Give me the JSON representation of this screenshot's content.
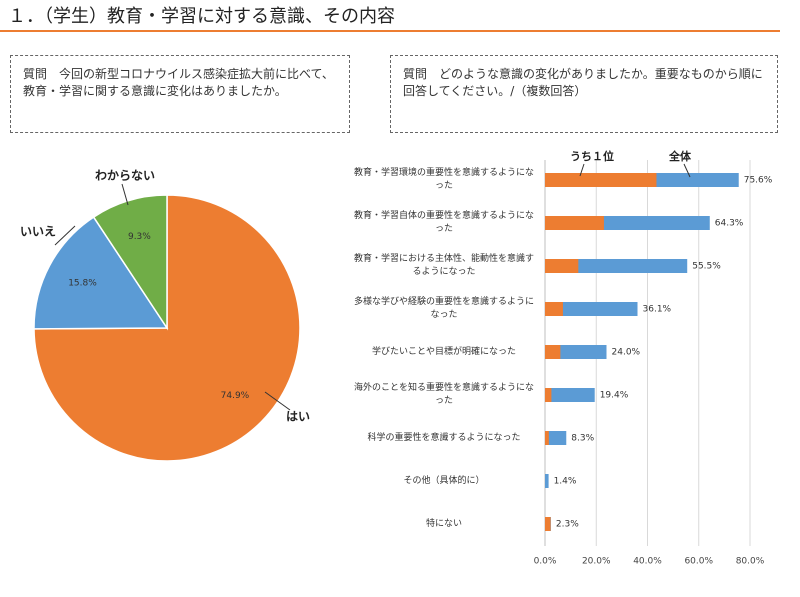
{
  "header": {
    "title": "１．（学生）教育・学習に対する意識、その内容"
  },
  "questions": [
    "質問　今回の新型コロナウイルス感染症拡大前に比べて、教育・学習に関する意識に変化はありましたか。",
    "質問　どのような意識の変化がありましたか。重要なものから順に回答してください。/（複数回答）"
  ],
  "chart_data": [
    {
      "type": "pie",
      "categories": [
        "はい",
        "いいえ",
        "わからない"
      ],
      "values": [
        74.9,
        15.8,
        9.3
      ],
      "value_labels": [
        "74.9%",
        "15.8%",
        "9.3%"
      ],
      "colors": [
        "#ED7D31",
        "#5B9BD5",
        "#70AD47"
      ]
    },
    {
      "type": "hbar",
      "categories": [
        "教育・学習環境の重要性を意識するようになった",
        "教育・学習自体の重要性を意識するようになった",
        "教育・学習における主体性、能動性を意識するようになった",
        "多様な学びや経験の重要性を意識するようになった",
        "学びたいことや目標が明確になった",
        "海外のことを知る重要性を意識するようになった",
        "科学の重要性を意識するようになった",
        "その他（具体的に）",
        "特にない"
      ],
      "series": [
        {
          "name": "全体",
          "color": "#5B9BD5",
          "values": [
            75.6,
            64.3,
            55.5,
            36.1,
            24.0,
            19.4,
            8.3,
            1.4,
            2.3
          ],
          "value_labels": [
            "75.6%",
            "64.3%",
            "55.5%",
            "36.1%",
            "24.0%",
            "19.4%",
            "8.3%",
            "1.4%",
            "2.3%"
          ]
        },
        {
          "name": "うち１位",
          "color": "#ED7D31",
          "values": [
            43.5,
            23,
            13,
            7,
            6,
            2.5,
            1.5,
            0,
            2.2
          ]
        }
      ],
      "xlim": [
        0,
        80
      ],
      "xticks": [
        {
          "value": 0,
          "label": "0.0%"
        },
        {
          "value": 20,
          "label": "20.0%"
        },
        {
          "value": 40,
          "label": "40.0%"
        },
        {
          "value": 60,
          "label": "60.0%"
        },
        {
          "value": 80,
          "label": "80.0%"
        }
      ],
      "grid": true
    }
  ]
}
